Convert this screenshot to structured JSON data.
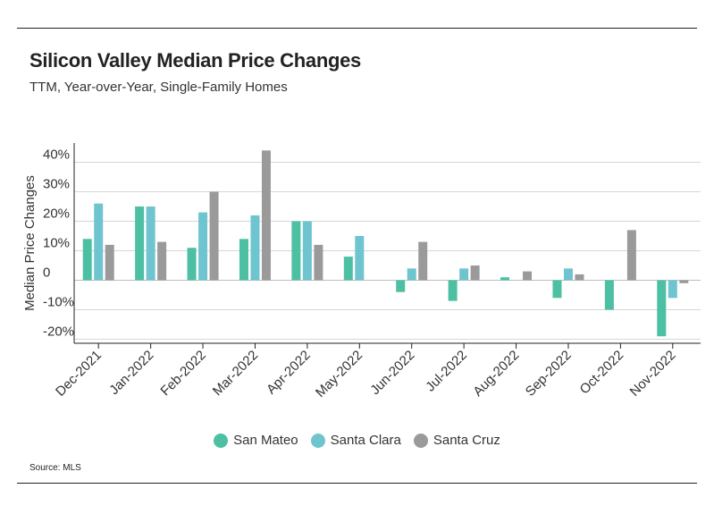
{
  "header": {
    "title": "Silicon Valley Median Price Changes",
    "subtitle": "TTM, Year-over-Year, Single-Family Homes"
  },
  "footer": {
    "source": "Source:  MLS"
  },
  "colors": {
    "San Mateo": "#4dbfa3",
    "Santa Clara": "#6ec5cf",
    "Santa Cruz": "#9a9a9a"
  },
  "chart_data": {
    "type": "bar",
    "title": "Silicon Valley Median Price Changes",
    "subtitle": "TTM, Year-over-Year, Single-Family Homes",
    "xlabel": "",
    "ylabel": "Median Price Changes",
    "categories": [
      "Dec-2021",
      "Jan-2022",
      "Feb-2022",
      "Mar-2022",
      "Apr-2022",
      "May-2022",
      "Jun-2022",
      "Jul-2022",
      "Aug-2022",
      "Sep-2022",
      "Oct-2022",
      "Nov-2022"
    ],
    "series": [
      {
        "name": "San Mateo",
        "values": [
          14,
          25,
          11,
          14,
          20,
          8,
          -4,
          -7,
          1,
          -6,
          -10,
          -19
        ]
      },
      {
        "name": "Santa Clara",
        "values": [
          26,
          25,
          23,
          22,
          20,
          15,
          4,
          4,
          null,
          4,
          null,
          -6
        ]
      },
      {
        "name": "Santa Cruz",
        "values": [
          12,
          13,
          30,
          44,
          12,
          null,
          13,
          5,
          3,
          2,
          17,
          -1
        ]
      }
    ],
    "yticks": [
      {
        "value": 40,
        "label": "40%"
      },
      {
        "value": 30,
        "label": "30%"
      },
      {
        "value": 20,
        "label": "20%"
      },
      {
        "value": 10,
        "label": "10%"
      },
      {
        "value": 0,
        "label": "0"
      },
      {
        "value": -10,
        "label": "-10%"
      },
      {
        "value": -20,
        "label": "-20%"
      }
    ],
    "ylim": [
      -23,
      44
    ],
    "grid": true,
    "legend_position": "bottom"
  }
}
